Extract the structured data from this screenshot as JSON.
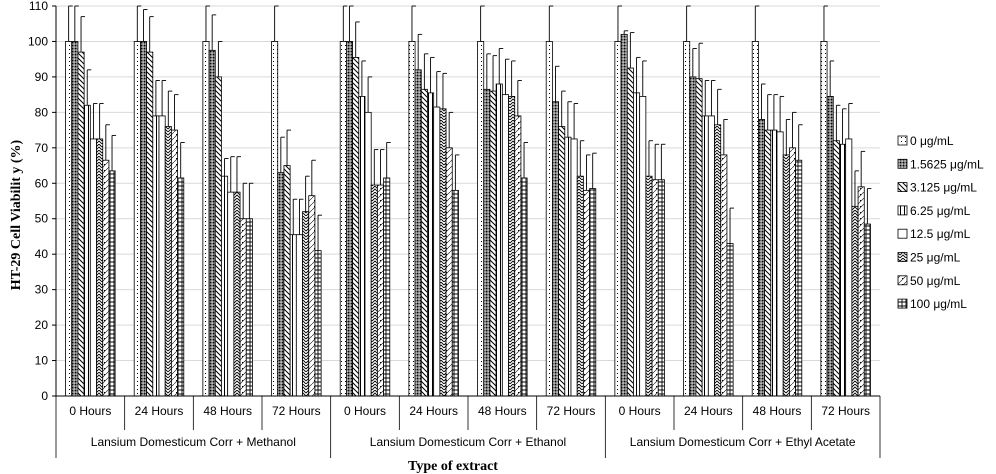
{
  "chart_data": {
    "type": "bar",
    "ylabel": "HT-29 Cell Viabilit y   (%)",
    "xlabel": "Type of extract",
    "ylim": [
      0,
      110
    ],
    "yticks": [
      0,
      10,
      20,
      30,
      40,
      50,
      60,
      70,
      80,
      90,
      100,
      110
    ],
    "legend_position": "right",
    "groups": [
      {
        "name": "Lansium Domesticum Corr + Methanol",
        "categories": [
          "0 Hours",
          "24 Hours",
          "48 Hours",
          "72 Hours"
        ]
      },
      {
        "name": "Lansium Domesticum Corr + Ethanol",
        "categories": [
          "0 Hours",
          "24 Hours",
          "48 Hours",
          "72 Hours"
        ]
      },
      {
        "name": "Lansium Domesticum Corr + Ethyl Acetate",
        "categories": [
          "0 Hours",
          "24 Hours",
          "48 Hours",
          "72 Hours"
        ]
      }
    ],
    "series": [
      {
        "name": "0 μg/mL",
        "values": [
          100,
          100,
          100,
          100,
          100,
          100,
          100,
          100,
          100,
          100,
          100,
          100
        ],
        "errors": [
          10,
          10,
          10,
          10,
          10,
          10,
          10,
          10,
          10,
          10,
          10,
          10
        ]
      },
      {
        "name": "1.5625 μg/mL",
        "values": [
          100,
          100,
          97.5,
          63,
          100,
          92,
          86.5,
          83,
          102,
          90,
          78,
          84.5
        ],
        "errors": [
          10,
          9,
          10,
          10,
          10,
          10,
          10,
          10,
          1,
          8,
          10,
          10
        ]
      },
      {
        "name": "3.125 μg/mL",
        "values": [
          97,
          97,
          90,
          65,
          95.5,
          86.5,
          86,
          76,
          92.5,
          89.5,
          75,
          72
        ],
        "errors": [
          10,
          10,
          10,
          10,
          10,
          10,
          10,
          10,
          10,
          10,
          10,
          10
        ]
      },
      {
        "name": "6.25 μg/mL",
        "values": [
          82,
          79,
          62,
          45.5,
          84.5,
          85.5,
          88,
          73,
          85.5,
          79,
          75,
          71
        ],
        "errors": [
          10,
          10,
          5,
          10,
          10,
          10,
          10,
          10,
          10,
          10,
          10,
          10
        ]
      },
      {
        "name": "12.5 μg/mL",
        "values": [
          72.5,
          79,
          57.5,
          45.5,
          80,
          81.5,
          85,
          72.5,
          84.5,
          79,
          74.5,
          72.5
        ],
        "errors": [
          10,
          10,
          10,
          10,
          10,
          10,
          10,
          10,
          10,
          10,
          10,
          10
        ]
      },
      {
        "name": "25 μg/mL",
        "values": [
          72.5,
          76,
          57.5,
          52,
          59.5,
          81,
          84.5,
          62,
          62,
          76.5,
          68,
          53.5
        ],
        "errors": [
          10,
          10,
          10,
          10,
          10,
          10,
          10,
          10,
          10,
          10,
          10,
          10
        ]
      },
      {
        "name": "50 μg/mL",
        "values": [
          66.5,
          75,
          50,
          56.5,
          59.5,
          70,
          79,
          58,
          61,
          68,
          70,
          59
        ],
        "errors": [
          10,
          10,
          10,
          10,
          10,
          10,
          10,
          10,
          10,
          10,
          10,
          10
        ]
      },
      {
        "name": "100 μg/mL",
        "values": [
          63.5,
          61.5,
          50,
          41,
          61.5,
          58,
          61.5,
          58.5,
          61,
          43,
          66.5,
          48.5
        ],
        "errors": [
          10,
          10,
          10,
          10,
          10,
          10,
          10,
          10,
          10,
          10,
          10,
          10
        ]
      }
    ]
  }
}
